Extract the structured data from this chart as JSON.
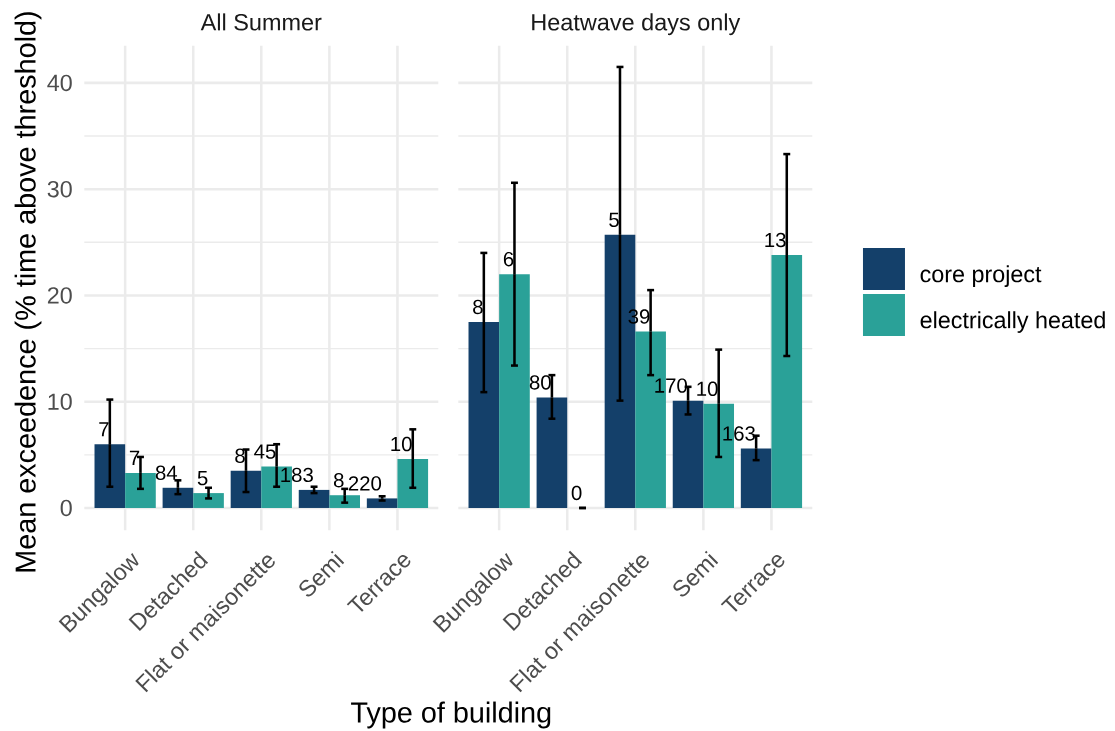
{
  "chart_data": [
    {
      "type": "bar",
      "title": "All Summer",
      "xlabel": "Type of building",
      "ylabel": "Mean exceedence (% time above threshold)",
      "categories": [
        "Bungalow",
        "Detached",
        "Flat or maisonette",
        "Semi",
        "Terrace"
      ],
      "series": [
        {
          "color": "#14406a",
          "values": [
            6.0,
            1.9,
            3.5,
            1.7,
            0.9
          ],
          "errors": [
            [
              2.0,
              10.2
            ],
            [
              1.3,
              2.6
            ],
            [
              1.5,
              5.5
            ],
            [
              1.4,
              2.0
            ],
            [
              0.7,
              1.1
            ]
          ]
        },
        {
          "color": "#2aa198",
          "values": [
            3.3,
            1.4,
            3.9,
            1.2,
            4.6
          ],
          "errors": [
            [
              1.8,
              4.8
            ],
            [
              0.9,
              1.9
            ],
            [
              2.0,
              6.0
            ],
            [
              0.5,
              1.8
            ],
            [
              1.9,
              7.4
            ]
          ]
        }
      ],
      "annotations": [
        {
          "text": "7",
          "x": "Bungalow",
          "y": 6.0
        },
        {
          "text": "84",
          "x": "Detached",
          "y": 1.9
        },
        {
          "text": "8",
          "x": "Flat or maisonette",
          "y": 3.5
        },
        {
          "text": "183",
          "x": "Semi",
          "y": 1.7
        },
        {
          "text": "220",
          "x": "Terrace",
          "y": 0.9
        },
        {
          "text": "7",
          "x": "Bungalow",
          "y": 3.3
        },
        {
          "text": "5",
          "x": "Detached",
          "y": 1.4
        },
        {
          "text": "45",
          "x": "Flat or maisonette",
          "y": 3.9
        },
        {
          "text": "8",
          "x": "Semi",
          "y": 1.2
        },
        {
          "text": "10",
          "x": "Terrace",
          "y": 4.6
        }
      ],
      "ylim": [
        -2.1,
        43.5
      ],
      "yticks": [
        0,
        10,
        20,
        30,
        40
      ],
      "grid": true
    },
    {
      "type": "bar",
      "title": "Heatwave days only",
      "categories": [
        "Bungalow",
        "Detached",
        "Flat or maisonette",
        "Semi",
        "Terrace"
      ],
      "series": [
        {
          "name": "core project",
          "color": "#14406a",
          "values": [
            17.5,
            10.4,
            25.7,
            10.1,
            5.6
          ],
          "errors": [
            [
              10.9,
              24.0
            ],
            [
              8.4,
              12.5
            ],
            [
              10.1,
              41.5
            ],
            [
              8.8,
              11.4
            ],
            [
              4.5,
              6.8
            ]
          ]
        },
        {
          "name": "electrically heated",
          "color": "#2aa198",
          "values": [
            22.0,
            0,
            16.6,
            9.8,
            23.8
          ],
          "errors": [
            [
              13.4,
              30.6
            ],
            [
              0,
              0
            ],
            [
              12.5,
              20.5
            ],
            [
              4.8,
              14.9
            ],
            [
              14.3,
              33.3
            ]
          ]
        }
      ],
      "annotations": [
        {
          "text": "8",
          "x": "Bungalow",
          "y": 17.5
        },
        {
          "text": "80",
          "x": "Detached",
          "y": 10.4
        },
        {
          "text": "5",
          "x": "Flat or maisonette",
          "y": 25.7
        },
        {
          "text": "170",
          "x": "Semi",
          "y": 10.1
        },
        {
          "text": "163",
          "x": "Terrace",
          "y": 5.6
        },
        {
          "text": "6",
          "x": "Bungalow",
          "y": 22.0
        },
        {
          "text": "0",
          "x": "Detached",
          "y": 0
        },
        {
          "text": "39",
          "x": "Flat or maisonette",
          "y": 16.6
        },
        {
          "text": "10",
          "x": "Semi",
          "y": 9.8
        },
        {
          "text": "13",
          "x": "Terrace",
          "y": 23.8
        }
      ],
      "ylim": [
        -2.1,
        43.5
      ],
      "yticks": [
        0,
        10,
        20,
        30,
        40
      ],
      "grid": true,
      "legend": "right",
      "tick_labels": "x"
    }
  ]
}
